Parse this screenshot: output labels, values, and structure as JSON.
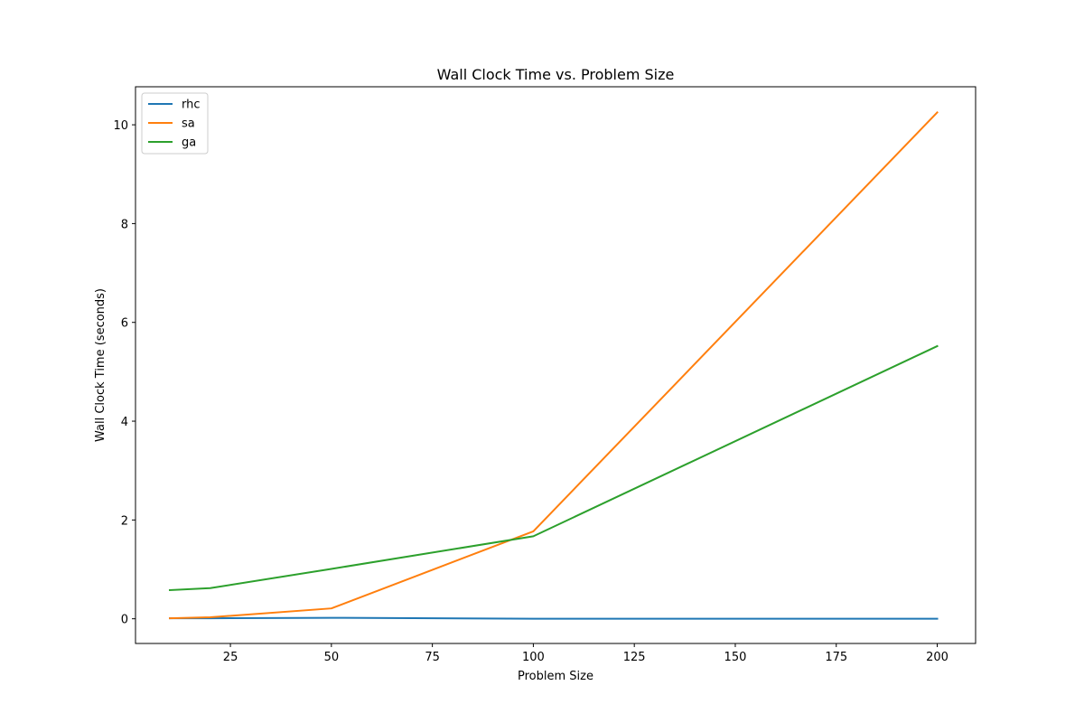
{
  "chart_data": {
    "type": "line",
    "title": "Wall Clock Time vs. Problem Size",
    "xlabel": "Problem Size",
    "ylabel": "Wall Clock Time (seconds)",
    "x": [
      10,
      20,
      50,
      100,
      200
    ],
    "xlim": [
      1.5,
      209.5
    ],
    "ylim": [
      -0.5,
      10.77
    ],
    "xticks": [
      25,
      50,
      75,
      100,
      125,
      150,
      175,
      200
    ],
    "yticks": [
      0,
      2,
      4,
      6,
      8,
      10
    ],
    "grid": false,
    "legend_position": "top-left",
    "series": [
      {
        "name": "rhc",
        "color": "#1f77b4",
        "values": [
          0.01,
          0.01,
          0.02,
          0.0,
          0.0
        ]
      },
      {
        "name": "sa",
        "color": "#ff7f0e",
        "values": [
          0.01,
          0.03,
          0.21,
          1.77,
          10.25
        ]
      },
      {
        "name": "ga",
        "color": "#2ca02c",
        "values": [
          0.58,
          0.62,
          1.01,
          1.67,
          5.52
        ]
      }
    ]
  }
}
